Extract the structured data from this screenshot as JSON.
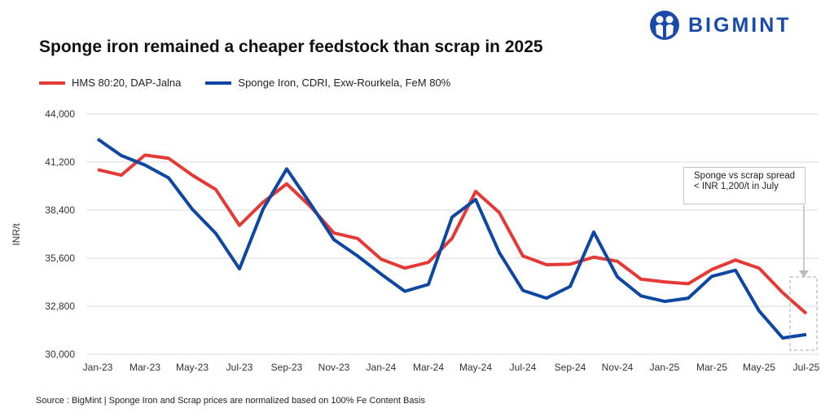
{
  "header": {
    "title": "Sponge iron remained a cheaper feedstock than scrap in 2025",
    "logo_text": "BIGMINT"
  },
  "footer": {
    "source": "Source : BigMint | Sponge Iron and Scrap prices are normalized based on 100% Fe Content Basis"
  },
  "chart_data": {
    "type": "line",
    "title": "Sponge iron remained a cheaper feedstock than scrap in 2025",
    "xlabel": "",
    "ylabel": "INR/t",
    "ylim": [
      30000,
      44000
    ],
    "yticks": [
      "30,000",
      "32,800",
      "35,600",
      "38,400",
      "41,200",
      "44,000"
    ],
    "ytick_values": [
      30000,
      32800,
      35600,
      38400,
      41200,
      44000
    ],
    "grid": true,
    "legend": "top-left",
    "x": [
      "Jan-23",
      "Feb-23",
      "Mar-23",
      "Apr-23",
      "May-23",
      "Jun-23",
      "Jul-23",
      "Aug-23",
      "Sep-23",
      "Oct-23",
      "Nov-23",
      "Dec-23",
      "Jan-24",
      "Feb-24",
      "Mar-24",
      "Apr-24",
      "May-24",
      "Jun-24",
      "Jul-24",
      "Aug-24",
      "Sep-24",
      "Oct-24",
      "Nov-24",
      "Dec-24",
      "Jan-25",
      "Feb-25",
      "Mar-25",
      "Apr-25",
      "May-25",
      "Jun-25",
      "Jul-25"
    ],
    "xticks": [
      "Jan-23",
      "Mar-23",
      "May-23",
      "Jul-23",
      "Sep-23",
      "Nov-23",
      "Jan-24",
      "Mar-24",
      "May-24",
      "Jul-24",
      "Sep-24",
      "Nov-24",
      "Jan-25",
      "Mar-25",
      "May-25",
      "Jul-25"
    ],
    "series": [
      {
        "name": "HMS 80:20, DAP-Jalna",
        "color": "#e53935",
        "values": [
          40760,
          40440,
          41610,
          41420,
          40440,
          39600,
          37510,
          38860,
          39930,
          38620,
          37070,
          36750,
          35540,
          35020,
          35360,
          36750,
          39490,
          38260,
          35730,
          35220,
          35250,
          35660,
          35420,
          34380,
          34220,
          34110,
          34940,
          35490,
          35020,
          33590,
          32370
        ]
      },
      {
        "name": "Sponge Iron, CDRI, Exw-Rourkela, FeM 80%",
        "color": "#0d47a1",
        "values": [
          42540,
          41580,
          41030,
          40280,
          38460,
          37040,
          34980,
          38460,
          40800,
          38780,
          36680,
          35730,
          34670,
          33670,
          34070,
          37990,
          39020,
          35930,
          33720,
          33270,
          33950,
          37120,
          34510,
          33400,
          33080,
          33270,
          34540,
          34900,
          32530,
          30950,
          31150
        ]
      }
    ],
    "annotations": [
      {
        "text_line1": "Sponge vs scrap spread",
        "text_line2": "< INR 1,200/t in July",
        "target": "Jul-25"
      }
    ]
  }
}
